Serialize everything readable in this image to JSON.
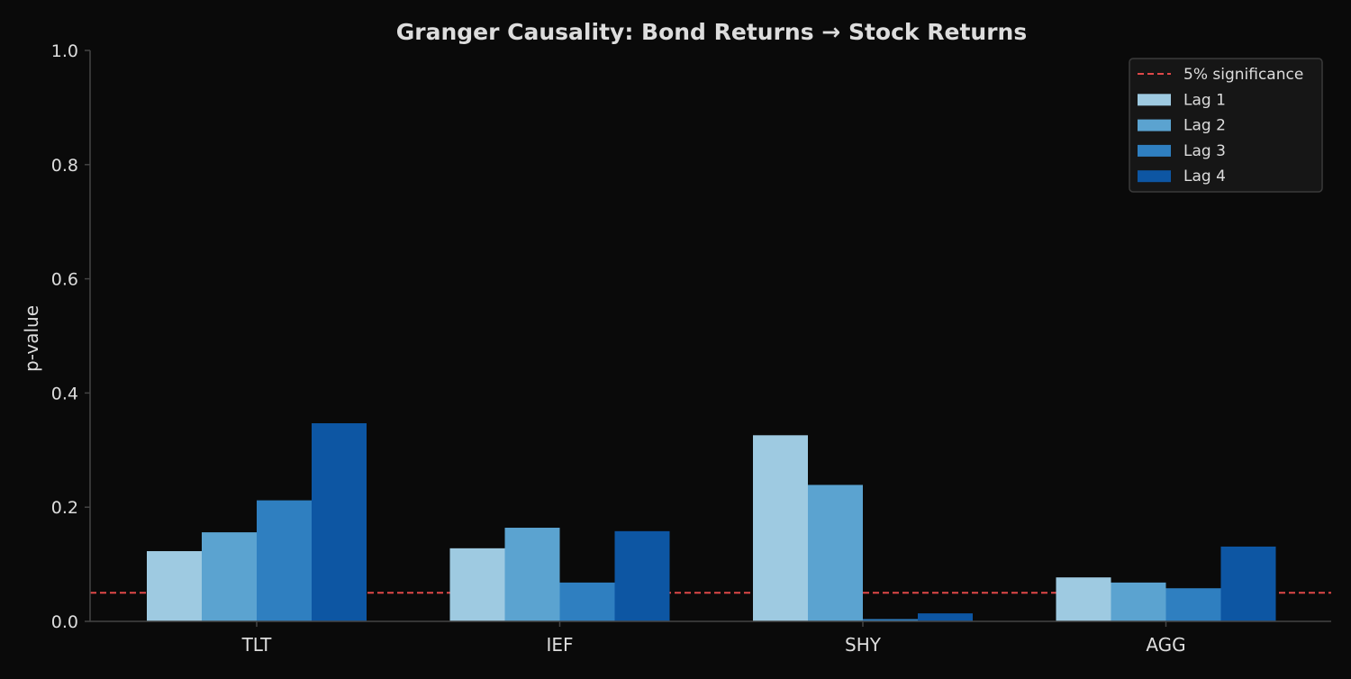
{
  "chart_data": {
    "type": "bar",
    "title": "Granger Causality: Bond Returns → Stock Returns",
    "xlabel": "",
    "ylabel": "p-value",
    "ylim": [
      0,
      1.0
    ],
    "yticks": [
      "0.0",
      "0.2",
      "0.4",
      "0.6",
      "0.8",
      "1.0"
    ],
    "ytick_values": [
      0,
      0.2,
      0.4,
      0.6,
      0.8,
      1.0
    ],
    "categories": [
      "TLT",
      "IEF",
      "SHY",
      "AGG"
    ],
    "series": [
      {
        "name": "Lag 1",
        "color": "#9ecae1",
        "values": [
          0.123,
          0.128,
          0.326,
          0.077
        ]
      },
      {
        "name": "Lag 2",
        "color": "#5ba3d0",
        "values": [
          0.156,
          0.164,
          0.239,
          0.068
        ]
      },
      {
        "name": "Lag 3",
        "color": "#2f7fc0",
        "values": [
          0.212,
          0.068,
          0.004,
          0.058
        ]
      },
      {
        "name": "Lag 4",
        "color": "#0d56a3",
        "values": [
          0.347,
          0.158,
          0.014,
          0.131
        ]
      }
    ],
    "reference_line": {
      "label": "5% significance",
      "value": 0.05,
      "color": "#e04848",
      "style": "dashed"
    },
    "legend_placement": "top-right",
    "grid": false,
    "background": "#0a0a0a",
    "text_color": "#dddddd",
    "axis_color": "#444444"
  }
}
